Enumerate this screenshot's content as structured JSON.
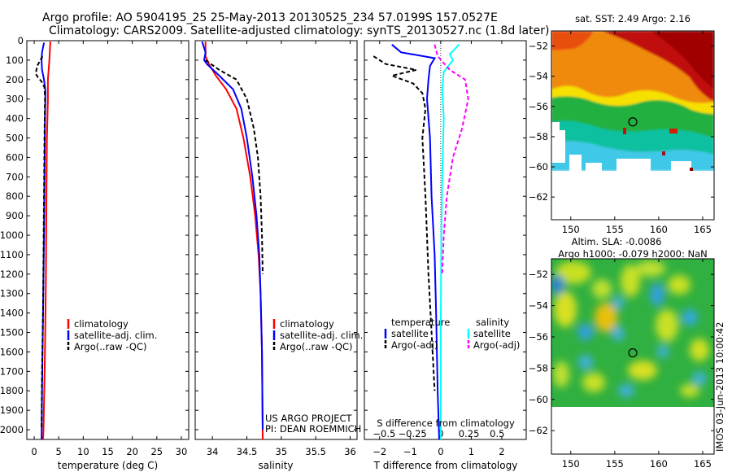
{
  "title": {
    "line1": "Argo profile: AO 5904195_25 25-May-2013 20130525_234 57.0199S 157.0527E",
    "line2": "Climatology: CARS2009. Satellite-adjusted climatology: synTS_20130527.nc (1.8d later)"
  },
  "credit": {
    "line1": "US ARGO PROJECT",
    "line2": "PI: DEAN ROEMMICH"
  },
  "timestamp": "IMOS 03-Jun-2013 10:00:42",
  "colors": {
    "climatology": "#ff0000",
    "satellite": "#0000ff",
    "argo": "#000000",
    "sal_satellite": "#00ffff",
    "sal_argo": "#ff00ff",
    "land": "#ffffff"
  },
  "chart_data": [
    {
      "type": "line",
      "name": "temperature-profile",
      "xlabel": "temperature (deg C)",
      "ylabel": "",
      "xlim": [
        -1.5,
        31.5
      ],
      "ylim": [
        2050,
        0
      ],
      "xticks": [
        0,
        5,
        10,
        15,
        20,
        25,
        30
      ],
      "xtick_labels": [
        "0",
        "5",
        "10",
        "15",
        "20",
        "25",
        "30"
      ],
      "yticks": [
        0,
        100,
        200,
        300,
        400,
        500,
        600,
        700,
        800,
        900,
        1000,
        1100,
        1200,
        1300,
        1400,
        1500,
        1600,
        1700,
        1800,
        1900,
        2000
      ],
      "ytick_labels": [
        "0",
        "100",
        "200",
        "300",
        "400",
        "500",
        "600",
        "700",
        "800",
        "900",
        "1000",
        "1100",
        "1200",
        "1300",
        "1400",
        "1500",
        "1600",
        "1700",
        "1800",
        "1900",
        "2000"
      ],
      "legend": [
        "climatology",
        "satellite-adj. clim.",
        "Argo(..raw -QC)"
      ],
      "series": [
        {
          "key": "climatology",
          "dash": false,
          "pts": [
            [
              3.3,
              5
            ],
            [
              3.1,
              100
            ],
            [
              2.8,
              200
            ],
            [
              2.8,
              300
            ],
            [
              2.6,
              500
            ],
            [
              2.5,
              800
            ],
            [
              2.4,
              1200
            ],
            [
              2.2,
              1600
            ],
            [
              1.9,
              2000
            ],
            [
              1.8,
              2050
            ]
          ]
        },
        {
          "key": "satellite",
          "dash": false,
          "pts": [
            [
              2.0,
              10
            ],
            [
              1.6,
              60
            ],
            [
              1.5,
              100
            ],
            [
              1.6,
              150
            ],
            [
              2.0,
              200
            ],
            [
              2.3,
              260
            ],
            [
              2.2,
              400
            ],
            [
              2.1,
              700
            ],
            [
              2.0,
              1000
            ],
            [
              1.8,
              1400
            ],
            [
              1.6,
              1800
            ],
            [
              1.5,
              2050
            ]
          ]
        },
        {
          "key": "argo",
          "dash": true,
          "pts": [
            [
              1.7,
              80
            ],
            [
              0.6,
              130
            ],
            [
              0.3,
              170
            ],
            [
              0.8,
              190
            ],
            [
              1.5,
              210
            ],
            [
              2.1,
              240
            ],
            [
              2.2,
              300
            ],
            [
              2.1,
              500
            ],
            [
              2.0,
              800
            ],
            [
              1.9,
              1100
            ],
            [
              1.8,
              1400
            ],
            [
              1.6,
              1700
            ],
            [
              1.5,
              2000
            ]
          ]
        }
      ]
    },
    {
      "type": "line",
      "name": "salinity-profile",
      "xlabel": "salinity",
      "ylabel": "",
      "xlim": [
        33.75,
        36.1
      ],
      "ylim": [
        2050,
        0
      ],
      "xticks": [
        34,
        34.5,
        35,
        35.5,
        36
      ],
      "xtick_labels": [
        "34",
        "34.5",
        "35",
        "35.5",
        "36"
      ],
      "legend": [
        "climatology",
        "satellite-adj. clim.",
        "Argo(..raw -QC)"
      ],
      "series": [
        {
          "key": "climatology",
          "dash": false,
          "pts": [
            [
              33.9,
              5
            ],
            [
              33.9,
              80
            ],
            [
              33.95,
              120
            ],
            [
              34.05,
              180
            ],
            [
              34.2,
              250
            ],
            [
              34.35,
              350
            ],
            [
              34.45,
              500
            ],
            [
              34.55,
              700
            ],
            [
              34.62,
              900
            ],
            [
              34.67,
              1100
            ],
            [
              34.7,
              1300
            ],
            [
              34.72,
              1600
            ],
            [
              34.73,
              2050
            ]
          ]
        },
        {
          "key": "satellite",
          "dash": false,
          "pts": [
            [
              33.85,
              5
            ],
            [
              33.9,
              60
            ],
            [
              33.88,
              100
            ],
            [
              33.92,
              120
            ],
            [
              34.1,
              180
            ],
            [
              34.3,
              250
            ],
            [
              34.42,
              350
            ],
            [
              34.5,
              500
            ],
            [
              34.58,
              700
            ],
            [
              34.64,
              900
            ],
            [
              34.68,
              1100
            ],
            [
              34.7,
              1300
            ],
            [
              34.72,
              1600
            ],
            [
              34.73,
              2000
            ]
          ]
        },
        {
          "key": "argo",
          "dash": true,
          "pts": [
            [
              33.9,
              100
            ],
            [
              34.1,
              150
            ],
            [
              34.35,
              200
            ],
            [
              34.5,
              300
            ],
            [
              34.6,
              450
            ],
            [
              34.66,
              600
            ],
            [
              34.7,
              800
            ],
            [
              34.72,
              1000
            ],
            [
              34.73,
              1200
            ]
          ]
        }
      ]
    },
    {
      "type": "line",
      "name": "difference-profile",
      "xlabel": "T difference from climatology",
      "xlabel2": "S difference from climatology",
      "ylabel": "",
      "xlim": [
        -2.5,
        2.8
      ],
      "ylim": [
        2050,
        0
      ],
      "xticks": [
        -2,
        -1,
        0,
        1,
        2
      ],
      "xtick_labels": [
        "−2",
        "−1",
        "0",
        "1",
        "2"
      ],
      "s_xticks": [
        -0.5,
        -0.25,
        0,
        0.25,
        0.5
      ],
      "s_xtick_labels": [
        "−0.5",
        "−0.25",
        "0",
        "0.25",
        "0.5"
      ],
      "s_xscale": 3.7,
      "legend_temperature_title": "temperature",
      "legend_salinity_title": "salinity",
      "legend_temperature": [
        "satellite",
        "Argo(-adj)"
      ],
      "legend_salinity": [
        "satellite",
        "Argo(-adj)"
      ],
      "series": [
        {
          "key": "satellite",
          "dash": false,
          "pts": [
            [
              -1.6,
              20
            ],
            [
              -1.3,
              60
            ],
            [
              -0.2,
              90
            ],
            [
              -0.35,
              130
            ],
            [
              -0.4,
              200
            ],
            [
              -0.45,
              300
            ],
            [
              -0.35,
              500
            ],
            [
              -0.3,
              800
            ],
            [
              -0.2,
              1100
            ],
            [
              -0.15,
              1400
            ],
            [
              -0.1,
              1800
            ],
            [
              -0.05,
              2050
            ]
          ]
        },
        {
          "key": "argo",
          "dash": true,
          "pts": [
            [
              -2.2,
              80
            ],
            [
              -1.8,
              120
            ],
            [
              -0.8,
              150
            ],
            [
              -1.6,
              180
            ],
            [
              -0.9,
              220
            ],
            [
              -0.6,
              270
            ],
            [
              -0.5,
              350
            ],
            [
              -0.6,
              500
            ],
            [
              -0.5,
              800
            ],
            [
              -0.4,
              1200
            ],
            [
              -0.3,
              1500
            ],
            [
              -0.2,
              1800
            ]
          ]
        },
        {
          "key": "sal_satellite",
          "dash": false,
          "pts": [
            [
              0.6,
              20
            ],
            [
              0.3,
              70
            ],
            [
              0.4,
              100
            ],
            [
              0.1,
              160
            ],
            [
              0.05,
              250
            ],
            [
              0.1,
              400
            ],
            [
              0.05,
              700
            ],
            [
              0.02,
              1000
            ],
            [
              0.0,
              1500
            ],
            [
              0.0,
              2050
            ]
          ]
        },
        {
          "key": "sal_argo",
          "dash": true,
          "pts": [
            [
              -0.2,
              20
            ],
            [
              -0.1,
              80
            ],
            [
              0.3,
              150
            ],
            [
              0.8,
              200
            ],
            [
              0.9,
              300
            ],
            [
              0.7,
              450
            ],
            [
              0.4,
              600
            ],
            [
              0.2,
              800
            ],
            [
              0.1,
              1000
            ],
            [
              0.05,
              1200
            ]
          ]
        }
      ]
    },
    {
      "type": "heatmap",
      "name": "sst-map",
      "title": "sat. SST: 2.49 Argo: 2.16",
      "xlim": [
        147.8,
        166.3
      ],
      "ylim": [
        -63.5,
        -51
      ],
      "xticks": [
        150,
        155,
        160,
        165
      ],
      "yticks": [
        -52,
        -54,
        -56,
        -58,
        -60,
        -62
      ],
      "ytick_labels": [
        "−52",
        "−54",
        "−56",
        "−58",
        "−60",
        "−62"
      ],
      "argo_location": [
        157.05,
        -57.02
      ],
      "data_extent_lat": -60
    },
    {
      "type": "heatmap",
      "name": "sla-map",
      "title": "Altim. SLA: -0.0086",
      "subtitle": "Argo h1000: -0.079 h2000: NaN",
      "xlim": [
        147.8,
        166.3
      ],
      "ylim": [
        -63.5,
        -51
      ],
      "xticks": [
        150,
        155,
        160,
        165
      ],
      "yticks": [
        -52,
        -54,
        -56,
        -58,
        -60,
        -62
      ],
      "ytick_labels": [
        "−52",
        "−54",
        "−56",
        "−58",
        "−60",
        "−62"
      ],
      "argo_location": [
        157.05,
        -57.02
      ],
      "data_extent_lat": -60
    }
  ]
}
